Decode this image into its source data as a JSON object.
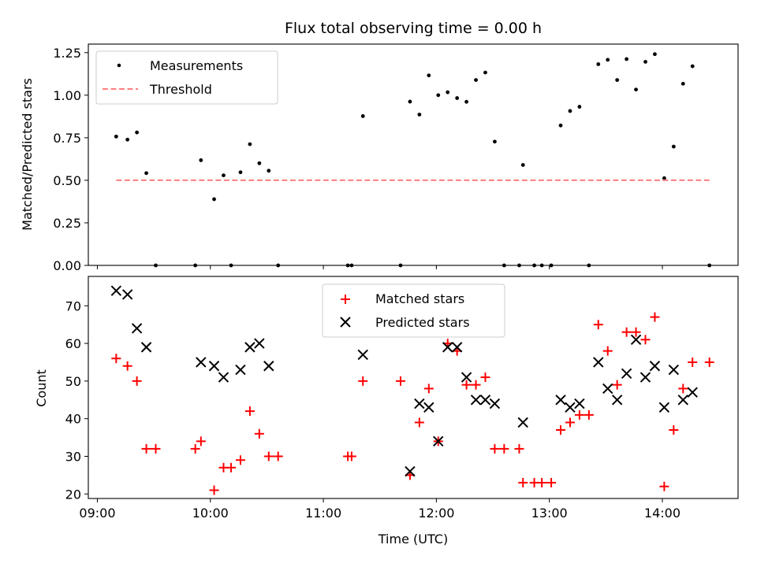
{
  "chart_data": [
    {
      "type": "scatter",
      "title": "Flux total observing time = 0.00 h",
      "xlabel": "",
      "ylabel": "Matched/Predicted stars",
      "ylim": [
        0,
        1.3
      ],
      "xlim_hours": [
        8.92,
        14.67
      ],
      "yticks": [
        "0.00",
        "0.25",
        "0.50",
        "0.75",
        "1.00",
        "1.25"
      ],
      "yticks_values": [
        0,
        0.25,
        0.5,
        0.75,
        1.0,
        1.25
      ],
      "xticks_hours": [
        9,
        10,
        11,
        12,
        13,
        14
      ],
      "grid": false,
      "legend_position": "upper-left",
      "series": [
        {
          "name": "Measurements",
          "style": "dot",
          "color": "#000000",
          "points": [
            [
              "09:10",
              0.757
            ],
            [
              "09:16",
              0.739
            ],
            [
              "09:21",
              0.781
            ],
            [
              "09:26",
              0.542
            ],
            [
              "09:31",
              0.0
            ],
            [
              "09:52",
              0.0
            ],
            [
              "09:55",
              0.618
            ],
            [
              "10:02",
              0.389
            ],
            [
              "10:07",
              0.529
            ],
            [
              "10:11",
              0.0
            ],
            [
              "10:16",
              0.547
            ],
            [
              "10:21",
              0.712
            ],
            [
              "10:26",
              0.6
            ],
            [
              "10:31",
              0.556
            ],
            [
              "10:36",
              0.0
            ],
            [
              "11:13",
              0.0
            ],
            [
              "11:15",
              0.0
            ],
            [
              "11:21",
              0.877
            ],
            [
              "11:41",
              0.0
            ],
            [
              "11:46",
              0.962
            ],
            [
              "11:51",
              0.886
            ],
            [
              "11:56",
              1.116
            ],
            [
              "12:01",
              1.0
            ],
            [
              "12:06",
              1.017
            ],
            [
              "12:11",
              0.983
            ],
            [
              "12:16",
              0.961
            ],
            [
              "12:21",
              1.089
            ],
            [
              "12:26",
              1.133
            ],
            [
              "12:31",
              0.727
            ],
            [
              "12:36",
              0.0
            ],
            [
              "12:44",
              0.0
            ],
            [
              "12:46",
              0.59
            ],
            [
              "12:52",
              0.0
            ],
            [
              "12:56",
              0.0
            ],
            [
              "13:01",
              0.0
            ],
            [
              "13:06",
              0.822
            ],
            [
              "13:11",
              0.907
            ],
            [
              "13:16",
              0.932
            ],
            [
              "13:21",
              0.0
            ],
            [
              "13:26",
              1.182
            ],
            [
              "13:31",
              1.208
            ],
            [
              "13:36",
              1.089
            ],
            [
              "13:41",
              1.212
            ],
            [
              "13:46",
              1.033
            ],
            [
              "13:51",
              1.196
            ],
            [
              "13:56",
              1.241
            ],
            [
              "14:01",
              0.512
            ],
            [
              "14:06",
              0.698
            ],
            [
              "14:11",
              1.067
            ],
            [
              "14:16",
              1.17
            ],
            [
              "14:25",
              0.0
            ]
          ]
        },
        {
          "name": "Threshold",
          "style": "dashed-line",
          "color": "#ff7f7f",
          "points": [
            [
              "09:10",
              0.5
            ],
            [
              "14:25",
              0.5
            ]
          ]
        }
      ]
    },
    {
      "type": "scatter",
      "title": "",
      "xlabel": "Time (UTC)",
      "ylabel": "Count",
      "ylim": [
        18.8,
        77.8
      ],
      "xlim_hours": [
        8.92,
        14.67
      ],
      "yticks": [
        "20",
        "30",
        "40",
        "50",
        "60",
        "70"
      ],
      "yticks_values": [
        20,
        30,
        40,
        50,
        60,
        70
      ],
      "xticks": [
        "09:00",
        "10:00",
        "11:00",
        "12:00",
        "13:00",
        "14:00"
      ],
      "xticks_hours": [
        9,
        10,
        11,
        12,
        13,
        14
      ],
      "grid": false,
      "legend_position": "upper-center",
      "series": [
        {
          "name": "Matched stars",
          "style": "plus",
          "color": "#ff0000",
          "points": [
            [
              "09:10",
              56
            ],
            [
              "09:16",
              54
            ],
            [
              "09:21",
              50
            ],
            [
              "09:26",
              32
            ],
            [
              "09:31",
              32
            ],
            [
              "09:52",
              32
            ],
            [
              "09:55",
              34
            ],
            [
              "10:02",
              21
            ],
            [
              "10:07",
              27
            ],
            [
              "10:11",
              27
            ],
            [
              "10:16",
              29
            ],
            [
              "10:21",
              42
            ],
            [
              "10:26",
              36
            ],
            [
              "10:31",
              30
            ],
            [
              "10:36",
              30
            ],
            [
              "11:13",
              30
            ],
            [
              "11:15",
              30
            ],
            [
              "11:21",
              50
            ],
            [
              "11:41",
              50
            ],
            [
              "11:46",
              25
            ],
            [
              "11:51",
              39
            ],
            [
              "11:56",
              48
            ],
            [
              "12:01",
              34
            ],
            [
              "12:06",
              60
            ],
            [
              "12:11",
              58
            ],
            [
              "12:16",
              49
            ],
            [
              "12:21",
              49
            ],
            [
              "12:26",
              51
            ],
            [
              "12:31",
              32
            ],
            [
              "12:36",
              32
            ],
            [
              "12:44",
              32
            ],
            [
              "12:46",
              23
            ],
            [
              "12:52",
              23
            ],
            [
              "12:56",
              23
            ],
            [
              "13:01",
              23
            ],
            [
              "13:06",
              37
            ],
            [
              "13:11",
              39
            ],
            [
              "13:16",
              41
            ],
            [
              "13:21",
              41
            ],
            [
              "13:26",
              65
            ],
            [
              "13:31",
              58
            ],
            [
              "13:36",
              49
            ],
            [
              "13:41",
              63
            ],
            [
              "13:46",
              63
            ],
            [
              "13:51",
              61
            ],
            [
              "13:56",
              67
            ],
            [
              "14:01",
              22
            ],
            [
              "14:06",
              37
            ],
            [
              "14:11",
              48
            ],
            [
              "14:16",
              55
            ],
            [
              "14:25",
              55
            ]
          ]
        },
        {
          "name": "Predicted stars",
          "style": "cross",
          "color": "#000000",
          "points": [
            [
              "09:10",
              74
            ],
            [
              "09:16",
              73
            ],
            [
              "09:21",
              64
            ],
            [
              "09:26",
              59
            ],
            [
              "09:55",
              55
            ],
            [
              "10:02",
              54
            ],
            [
              "10:07",
              51
            ],
            [
              "10:16",
              53
            ],
            [
              "10:21",
              59
            ],
            [
              "10:26",
              60
            ],
            [
              "10:31",
              54
            ],
            [
              "11:21",
              57
            ],
            [
              "11:46",
              26
            ],
            [
              "11:51",
              44
            ],
            [
              "11:56",
              43
            ],
            [
              "12:01",
              34
            ],
            [
              "12:06",
              59
            ],
            [
              "12:11",
              59
            ],
            [
              "12:16",
              51
            ],
            [
              "12:21",
              45
            ],
            [
              "12:26",
              45
            ],
            [
              "12:31",
              44
            ],
            [
              "12:46",
              39
            ],
            [
              "13:06",
              45
            ],
            [
              "13:11",
              43
            ],
            [
              "13:16",
              44
            ],
            [
              "13:26",
              55
            ],
            [
              "13:31",
              48
            ],
            [
              "13:36",
              45
            ],
            [
              "13:41",
              52
            ],
            [
              "13:46",
              61
            ],
            [
              "13:51",
              51
            ],
            [
              "13:56",
              54
            ],
            [
              "14:01",
              43
            ],
            [
              "14:06",
              53
            ],
            [
              "14:11",
              45
            ],
            [
              "14:16",
              47
            ]
          ]
        }
      ]
    }
  ]
}
